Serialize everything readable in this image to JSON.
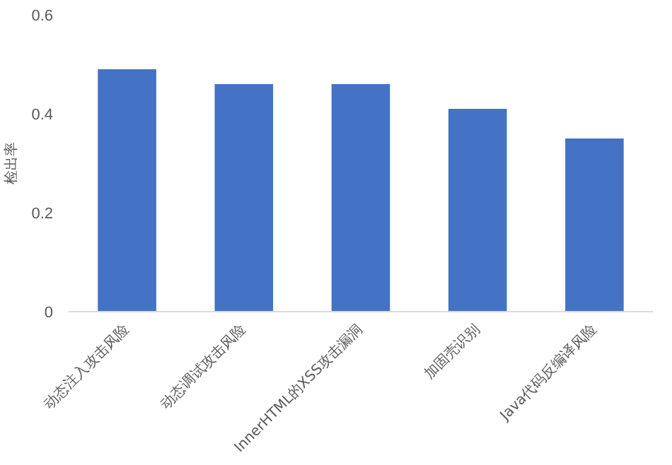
{
  "chart_data": {
    "type": "bar",
    "ylabel": "检出率",
    "categories": [
      "动态注入攻击风险",
      "动态调试攻击风险",
      "InnerHTML的XSS攻击漏洞",
      "加固壳识别",
      "Java代码反编译风险"
    ],
    "values": [
      0.49,
      0.46,
      0.46,
      0.41,
      0.35
    ],
    "color": "#4472c4",
    "ylim": [
      0,
      0.6
    ],
    "yticks": [
      0,
      0.2,
      0.4,
      0.6
    ],
    "grid": false
  }
}
